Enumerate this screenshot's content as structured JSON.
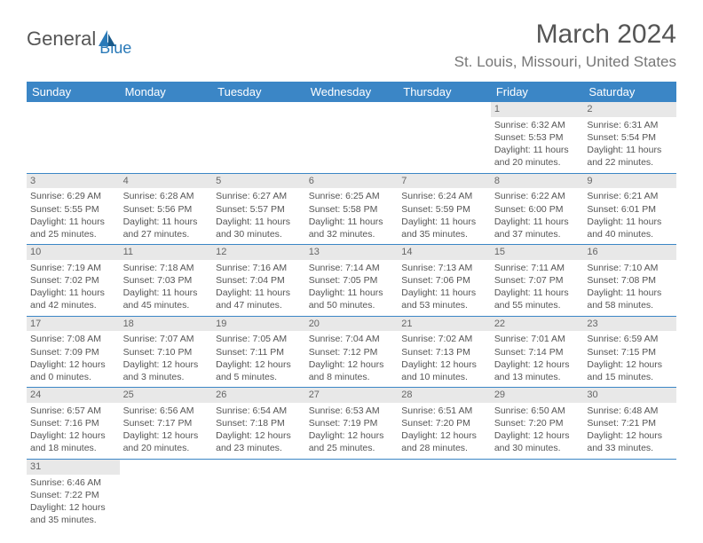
{
  "logo": {
    "part1": "General",
    "part2": "Blue"
  },
  "title": "March 2024",
  "location": "St. Louis, Missouri, United States",
  "colors": {
    "header_bg": "#3b86c6",
    "header_text": "#ffffff",
    "daynum_bg": "#e8e8e8",
    "cell_border": "#3b86c6",
    "text": "#555555",
    "logo_gray": "#555555",
    "logo_blue": "#2a7ab8"
  },
  "weekdays": [
    "Sunday",
    "Monday",
    "Tuesday",
    "Wednesday",
    "Thursday",
    "Friday",
    "Saturday"
  ],
  "weeks": [
    [
      null,
      null,
      null,
      null,
      null,
      {
        "n": "1",
        "sr": "Sunrise: 6:32 AM",
        "ss": "Sunset: 5:53 PM",
        "d1": "Daylight: 11 hours",
        "d2": "and 20 minutes."
      },
      {
        "n": "2",
        "sr": "Sunrise: 6:31 AM",
        "ss": "Sunset: 5:54 PM",
        "d1": "Daylight: 11 hours",
        "d2": "and 22 minutes."
      }
    ],
    [
      {
        "n": "3",
        "sr": "Sunrise: 6:29 AM",
        "ss": "Sunset: 5:55 PM",
        "d1": "Daylight: 11 hours",
        "d2": "and 25 minutes."
      },
      {
        "n": "4",
        "sr": "Sunrise: 6:28 AM",
        "ss": "Sunset: 5:56 PM",
        "d1": "Daylight: 11 hours",
        "d2": "and 27 minutes."
      },
      {
        "n": "5",
        "sr": "Sunrise: 6:27 AM",
        "ss": "Sunset: 5:57 PM",
        "d1": "Daylight: 11 hours",
        "d2": "and 30 minutes."
      },
      {
        "n": "6",
        "sr": "Sunrise: 6:25 AM",
        "ss": "Sunset: 5:58 PM",
        "d1": "Daylight: 11 hours",
        "d2": "and 32 minutes."
      },
      {
        "n": "7",
        "sr": "Sunrise: 6:24 AM",
        "ss": "Sunset: 5:59 PM",
        "d1": "Daylight: 11 hours",
        "d2": "and 35 minutes."
      },
      {
        "n": "8",
        "sr": "Sunrise: 6:22 AM",
        "ss": "Sunset: 6:00 PM",
        "d1": "Daylight: 11 hours",
        "d2": "and 37 minutes."
      },
      {
        "n": "9",
        "sr": "Sunrise: 6:21 AM",
        "ss": "Sunset: 6:01 PM",
        "d1": "Daylight: 11 hours",
        "d2": "and 40 minutes."
      }
    ],
    [
      {
        "n": "10",
        "sr": "Sunrise: 7:19 AM",
        "ss": "Sunset: 7:02 PM",
        "d1": "Daylight: 11 hours",
        "d2": "and 42 minutes."
      },
      {
        "n": "11",
        "sr": "Sunrise: 7:18 AM",
        "ss": "Sunset: 7:03 PM",
        "d1": "Daylight: 11 hours",
        "d2": "and 45 minutes."
      },
      {
        "n": "12",
        "sr": "Sunrise: 7:16 AM",
        "ss": "Sunset: 7:04 PM",
        "d1": "Daylight: 11 hours",
        "d2": "and 47 minutes."
      },
      {
        "n": "13",
        "sr": "Sunrise: 7:14 AM",
        "ss": "Sunset: 7:05 PM",
        "d1": "Daylight: 11 hours",
        "d2": "and 50 minutes."
      },
      {
        "n": "14",
        "sr": "Sunrise: 7:13 AM",
        "ss": "Sunset: 7:06 PM",
        "d1": "Daylight: 11 hours",
        "d2": "and 53 minutes."
      },
      {
        "n": "15",
        "sr": "Sunrise: 7:11 AM",
        "ss": "Sunset: 7:07 PM",
        "d1": "Daylight: 11 hours",
        "d2": "and 55 minutes."
      },
      {
        "n": "16",
        "sr": "Sunrise: 7:10 AM",
        "ss": "Sunset: 7:08 PM",
        "d1": "Daylight: 11 hours",
        "d2": "and 58 minutes."
      }
    ],
    [
      {
        "n": "17",
        "sr": "Sunrise: 7:08 AM",
        "ss": "Sunset: 7:09 PM",
        "d1": "Daylight: 12 hours",
        "d2": "and 0 minutes."
      },
      {
        "n": "18",
        "sr": "Sunrise: 7:07 AM",
        "ss": "Sunset: 7:10 PM",
        "d1": "Daylight: 12 hours",
        "d2": "and 3 minutes."
      },
      {
        "n": "19",
        "sr": "Sunrise: 7:05 AM",
        "ss": "Sunset: 7:11 PM",
        "d1": "Daylight: 12 hours",
        "d2": "and 5 minutes."
      },
      {
        "n": "20",
        "sr": "Sunrise: 7:04 AM",
        "ss": "Sunset: 7:12 PM",
        "d1": "Daylight: 12 hours",
        "d2": "and 8 minutes."
      },
      {
        "n": "21",
        "sr": "Sunrise: 7:02 AM",
        "ss": "Sunset: 7:13 PM",
        "d1": "Daylight: 12 hours",
        "d2": "and 10 minutes."
      },
      {
        "n": "22",
        "sr": "Sunrise: 7:01 AM",
        "ss": "Sunset: 7:14 PM",
        "d1": "Daylight: 12 hours",
        "d2": "and 13 minutes."
      },
      {
        "n": "23",
        "sr": "Sunrise: 6:59 AM",
        "ss": "Sunset: 7:15 PM",
        "d1": "Daylight: 12 hours",
        "d2": "and 15 minutes."
      }
    ],
    [
      {
        "n": "24",
        "sr": "Sunrise: 6:57 AM",
        "ss": "Sunset: 7:16 PM",
        "d1": "Daylight: 12 hours",
        "d2": "and 18 minutes."
      },
      {
        "n": "25",
        "sr": "Sunrise: 6:56 AM",
        "ss": "Sunset: 7:17 PM",
        "d1": "Daylight: 12 hours",
        "d2": "and 20 minutes."
      },
      {
        "n": "26",
        "sr": "Sunrise: 6:54 AM",
        "ss": "Sunset: 7:18 PM",
        "d1": "Daylight: 12 hours",
        "d2": "and 23 minutes."
      },
      {
        "n": "27",
        "sr": "Sunrise: 6:53 AM",
        "ss": "Sunset: 7:19 PM",
        "d1": "Daylight: 12 hours",
        "d2": "and 25 minutes."
      },
      {
        "n": "28",
        "sr": "Sunrise: 6:51 AM",
        "ss": "Sunset: 7:20 PM",
        "d1": "Daylight: 12 hours",
        "d2": "and 28 minutes."
      },
      {
        "n": "29",
        "sr": "Sunrise: 6:50 AM",
        "ss": "Sunset: 7:20 PM",
        "d1": "Daylight: 12 hours",
        "d2": "and 30 minutes."
      },
      {
        "n": "30",
        "sr": "Sunrise: 6:48 AM",
        "ss": "Sunset: 7:21 PM",
        "d1": "Daylight: 12 hours",
        "d2": "and 33 minutes."
      }
    ],
    [
      {
        "n": "31",
        "sr": "Sunrise: 6:46 AM",
        "ss": "Sunset: 7:22 PM",
        "d1": "Daylight: 12 hours",
        "d2": "and 35 minutes."
      },
      null,
      null,
      null,
      null,
      null,
      null
    ]
  ]
}
